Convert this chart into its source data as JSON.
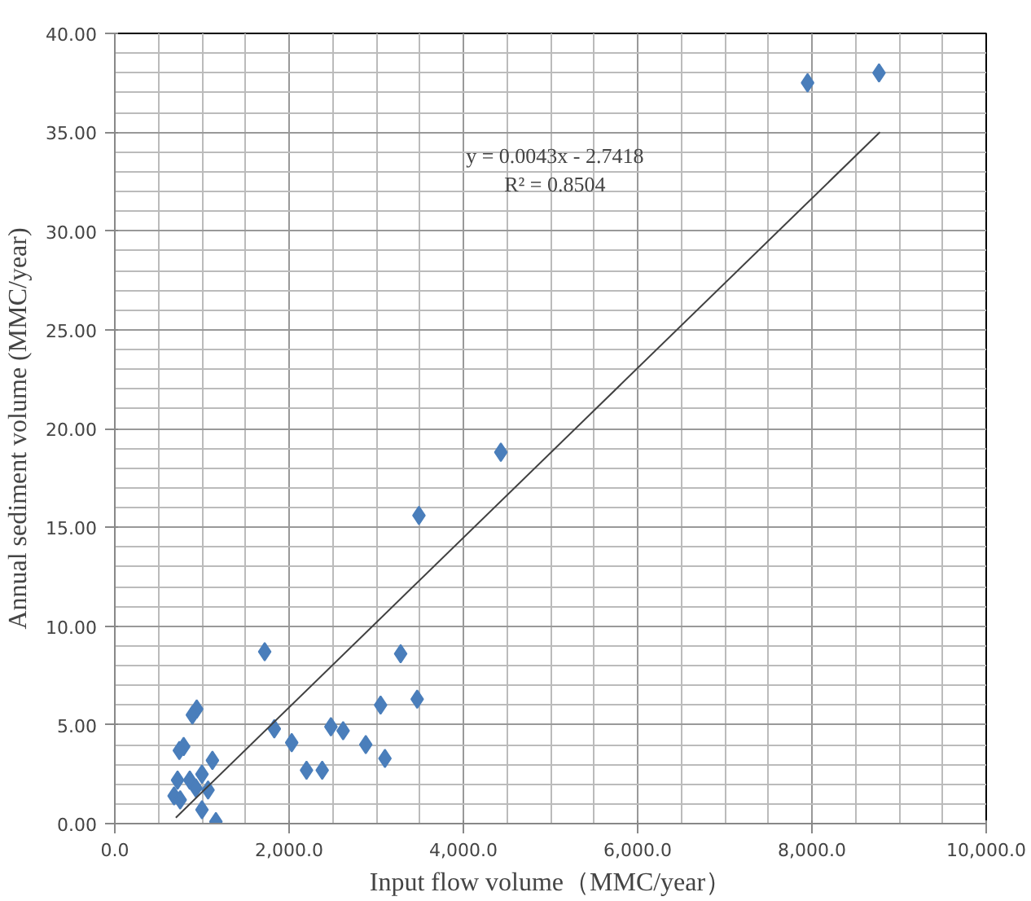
{
  "chart_data": {
    "type": "scatter",
    "xlabel": "Input flow volume（MMC/year）",
    "ylabel": "Annual sediment volume (MMC/year)",
    "xlim": [
      0,
      10000
    ],
    "ylim": [
      0,
      40
    ],
    "xticks": [
      {
        "value": 0,
        "label": "0.0"
      },
      {
        "value": 2000,
        "label": "2,000.0"
      },
      {
        "value": 4000,
        "label": "4,000.0"
      },
      {
        "value": 6000,
        "label": "6,000.0"
      },
      {
        "value": 8000,
        "label": "8,000.0"
      },
      {
        "value": 10000,
        "label": "10,000.0"
      }
    ],
    "yticks": [
      {
        "value": 0,
        "label": "0.00"
      },
      {
        "value": 5,
        "label": "5.00"
      },
      {
        "value": 10,
        "label": "10.00"
      },
      {
        "value": 15,
        "label": "15.00"
      },
      {
        "value": 20,
        "label": "20.00"
      },
      {
        "value": 25,
        "label": "25.00"
      },
      {
        "value": 30,
        "label": "30.00"
      },
      {
        "value": 35,
        "label": "35.00"
      },
      {
        "value": 40,
        "label": "40.00"
      }
    ],
    "grid": true,
    "marker": "diamond",
    "series": [
      {
        "color": "#4a7ebb",
        "x": [
          7950,
          8770,
          4430,
          3490,
          1720,
          3280,
          3470,
          3050,
          940,
          890,
          1830,
          2030,
          2480,
          2620,
          2880,
          3100,
          2200,
          2380,
          790,
          740,
          1120,
          720,
          860,
          1000,
          930,
          1070,
          680,
          750,
          1000,
          1160
        ],
        "values": [
          37.5,
          38.0,
          18.8,
          15.6,
          8.7,
          8.6,
          6.3,
          6.0,
          5.8,
          5.5,
          4.8,
          4.1,
          4.9,
          4.7,
          4.0,
          3.3,
          2.7,
          2.7,
          3.9,
          3.7,
          3.2,
          2.2,
          2.2,
          2.5,
          1.8,
          1.7,
          1.4,
          1.2,
          0.7,
          0.1
        ]
      },
      {
        "type": "line",
        "marker": "none",
        "color": "#404040",
        "x": [
          700,
          8780
        ],
        "values": [
          0.3,
          35.0
        ]
      }
    ],
    "annotations": [
      "y = 0.0043x - 2.7418",
      "R² = 0.8504"
    ]
  }
}
